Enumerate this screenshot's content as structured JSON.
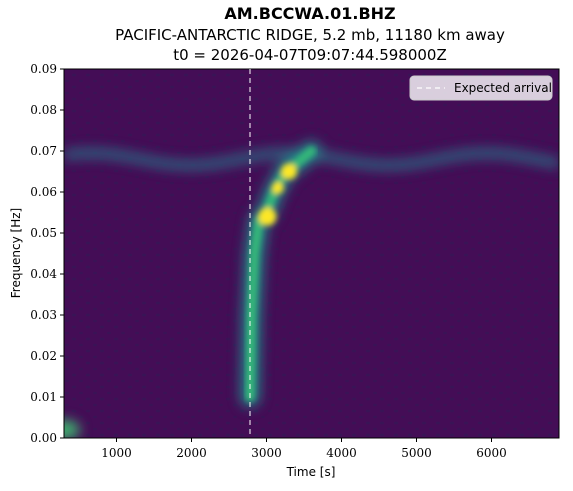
{
  "header": {
    "station": "AM.BCCWA.01.BHZ",
    "event": "PACIFIC-ANTARCTIC RIDGE, 5.2 mb, 11180 km away",
    "origin": "t0 = 2026-04-07T09:07:44.598000Z"
  },
  "chart_data": {
    "type": "heatmap",
    "title": "AM.BCCWA.01.BHZ",
    "xlabel": "Time [s]",
    "ylabel": "Frequency [Hz]",
    "xlim": [
      300,
      6900
    ],
    "ylim": [
      0.0,
      0.09
    ],
    "x_ticks": [
      1000,
      2000,
      3000,
      4000,
      5000,
      6000
    ],
    "x_tick_labels": [
      "1000",
      "2000",
      "3000",
      "4000",
      "5000",
      "6000"
    ],
    "y_ticks": [
      0.0,
      0.01,
      0.02,
      0.03,
      0.04,
      0.05,
      0.06,
      0.07,
      0.08,
      0.09
    ],
    "y_tick_labels": [
      "0.00",
      "0.01",
      "0.02",
      "0.03",
      "0.04",
      "0.05",
      "0.06",
      "0.07",
      "0.08",
      "0.09"
    ],
    "colormap": "viridis",
    "expected_arrival_s": 2780,
    "legend": {
      "label": "Expected arrival",
      "placement": "top-right"
    },
    "dispersed_arrival": [
      {
        "t": 2780,
        "f": 0.01
      },
      {
        "t": 2800,
        "f": 0.03
      },
      {
        "t": 2840,
        "f": 0.045
      },
      {
        "t": 2900,
        "f": 0.053
      },
      {
        "t": 3000,
        "f": 0.055
      },
      {
        "t": 3100,
        "f": 0.06
      },
      {
        "t": 3250,
        "f": 0.065
      },
      {
        "t": 3400,
        "f": 0.067
      },
      {
        "t": 3600,
        "f": 0.07
      }
    ],
    "background_band_f": 0.068,
    "grid": false
  }
}
